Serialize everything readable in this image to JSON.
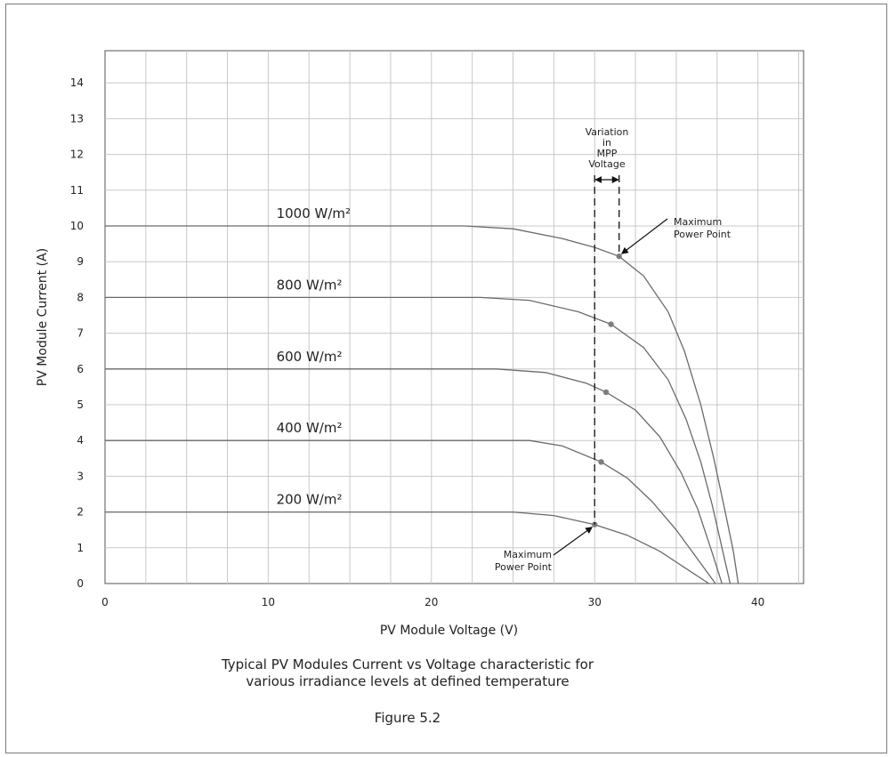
{
  "chart_data": {
    "type": "line",
    "xlabel": "PV Module Voltage (V)",
    "ylabel": "PV Module Current (A)",
    "xlim": [
      0,
      42.8
    ],
    "ylim": [
      0,
      14.9
    ],
    "x_ticks": [
      0,
      10,
      20,
      30,
      40
    ],
    "y_ticks": [
      0,
      1,
      2,
      3,
      4,
      5,
      6,
      7,
      8,
      9,
      10,
      11,
      12,
      13,
      14
    ],
    "grid": true,
    "series": [
      {
        "name": "1000 W/m²",
        "label": "1000 W/m²",
        "label_at": [
          10.5,
          10.2
        ],
        "points": [
          [
            0,
            10
          ],
          [
            22,
            10
          ],
          [
            25,
            9.92
          ],
          [
            28,
            9.65
          ],
          [
            30,
            9.4
          ],
          [
            31.5,
            9.15
          ],
          [
            33,
            8.6
          ],
          [
            34.5,
            7.6
          ],
          [
            35.5,
            6.5
          ],
          [
            36.5,
            5.0
          ],
          [
            37.3,
            3.5
          ],
          [
            38,
            2.0
          ],
          [
            38.5,
            0.9
          ],
          [
            38.8,
            0
          ]
        ],
        "mpp": [
          31.5,
          9.15
        ]
      },
      {
        "name": "800 W/m²",
        "label": "800 W/m²",
        "label_at": [
          10.5,
          8.2
        ],
        "points": [
          [
            0,
            8
          ],
          [
            23,
            8
          ],
          [
            26,
            7.92
          ],
          [
            29,
            7.6
          ],
          [
            31,
            7.25
          ],
          [
            33,
            6.6
          ],
          [
            34.5,
            5.7
          ],
          [
            35.6,
            4.6
          ],
          [
            36.5,
            3.4
          ],
          [
            37.2,
            2.2
          ],
          [
            37.8,
            1.0
          ],
          [
            38.3,
            0
          ]
        ],
        "mpp": [
          31,
          7.25
        ]
      },
      {
        "name": "600 W/m²",
        "label": "600 W/m²",
        "label_at": [
          10.5,
          6.2
        ],
        "points": [
          [
            0,
            6
          ],
          [
            24,
            6
          ],
          [
            27,
            5.9
          ],
          [
            29.5,
            5.6
          ],
          [
            30.7,
            5.35
          ],
          [
            32.5,
            4.85
          ],
          [
            34,
            4.1
          ],
          [
            35.3,
            3.1
          ],
          [
            36.3,
            2.1
          ],
          [
            37.1,
            1.0
          ],
          [
            37.8,
            0
          ]
        ],
        "mpp": [
          30.7,
          5.35
        ]
      },
      {
        "name": "400 W/m²",
        "label": "400 W/m²",
        "label_at": [
          10.5,
          4.2
        ],
        "points": [
          [
            0,
            4
          ],
          [
            26,
            4
          ],
          [
            28,
            3.85
          ],
          [
            30.4,
            3.4
          ],
          [
            32,
            2.95
          ],
          [
            33.5,
            2.3
          ],
          [
            35,
            1.5
          ],
          [
            36.2,
            0.75
          ],
          [
            37.4,
            0
          ]
        ],
        "mpp": [
          30.4,
          3.4
        ]
      },
      {
        "name": "200 W/m²",
        "label": "200 W/m²",
        "label_at": [
          10.5,
          2.2
        ],
        "points": [
          [
            0,
            2
          ],
          [
            25,
            2
          ],
          [
            27.5,
            1.9
          ],
          [
            30,
            1.65
          ],
          [
            32,
            1.35
          ],
          [
            34,
            0.9
          ],
          [
            35.5,
            0.45
          ],
          [
            37,
            0
          ]
        ],
        "mpp": [
          30,
          1.65
        ]
      }
    ],
    "mpp_variation_bounds": [
      30,
      31.5
    ]
  },
  "annotations": {
    "variation": [
      "Variation",
      "in",
      "MPP",
      "Voltage"
    ],
    "mpp_top": [
      "Maximum",
      "Power Point"
    ],
    "mpp_bottom": [
      "Maximum",
      "Power Point"
    ]
  },
  "caption": {
    "line1": "Typical PV Modules Current vs Voltage characteristic for",
    "line2": "various irradiance levels at defined temperature",
    "figure": "Figure 5.2"
  }
}
